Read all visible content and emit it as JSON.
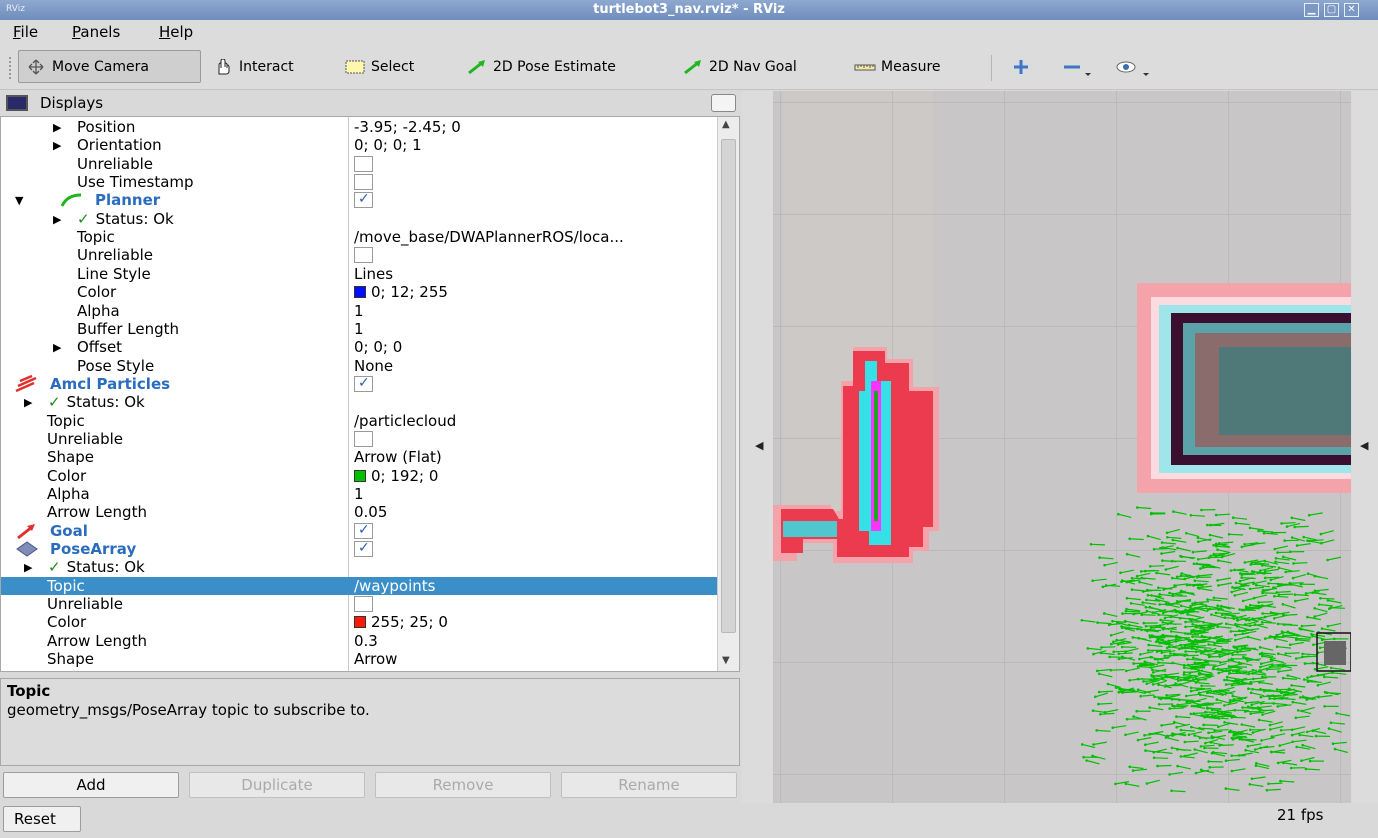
{
  "window": {
    "app_tag": "RViz",
    "title": "turtlebot3_nav.rviz* - RViz",
    "controls": [
      "minimize",
      "maximize",
      "close"
    ]
  },
  "menu": [
    {
      "label": "File",
      "accel": "F",
      "rest": "ile"
    },
    {
      "label": "Panels",
      "accel": "P",
      "rest": "anels"
    },
    {
      "label": "Help",
      "accel": "H",
      "rest": "elp"
    }
  ],
  "toolbar": {
    "move_camera": "Move Camera",
    "interact": "Interact",
    "select": "Select",
    "pose_estimate": "2D Pose Estimate",
    "nav_goal": "2D Nav Goal",
    "measure": "Measure",
    "add_tool_icon": "plus-icon",
    "remove_tool_icon": "minus-icon",
    "view_icon": "eye-icon"
  },
  "displays": {
    "title": "Displays",
    "rows": [
      {
        "key": "Position",
        "value": "-3.95; -2.45; 0",
        "indent": 76,
        "arrow": "right"
      },
      {
        "key": "Orientation",
        "value": "0; 0; 0; 1",
        "indent": 76,
        "arrow": "right"
      },
      {
        "key": "Unreliable",
        "value": "",
        "indent": 76,
        "check": "off"
      },
      {
        "key": "Use Timestamp",
        "value": "",
        "indent": 76,
        "check": "off"
      },
      {
        "key": "Planner",
        "value": "",
        "indent": 94,
        "arrow": "down",
        "check": "on",
        "display": true,
        "icon": "path-icon"
      },
      {
        "key": "Status: Ok",
        "value": "",
        "indent": 108,
        "arrow": "right",
        "status": true
      },
      {
        "key": "Topic",
        "value": "/move_base/DWAPlannerROS/loca...",
        "indent": 76
      },
      {
        "key": "Unreliable",
        "value": "",
        "indent": 76,
        "check": "off"
      },
      {
        "key": "Line Style",
        "value": "Lines",
        "indent": 76
      },
      {
        "key": "Color",
        "value": "0; 12; 255",
        "indent": 76,
        "swatch": "#000cff"
      },
      {
        "key": "Alpha",
        "value": "1",
        "indent": 76
      },
      {
        "key": "Buffer Length",
        "value": "1",
        "indent": 76
      },
      {
        "key": "Offset",
        "value": "0; 0; 0",
        "indent": 76,
        "arrow": "right"
      },
      {
        "key": "Pose Style",
        "value": "None",
        "indent": 76
      },
      {
        "key": "Amcl Particles",
        "value": "",
        "indent": 49,
        "check": "on",
        "display": true,
        "icon": "pose-array-red-icon"
      },
      {
        "key": "Status: Ok",
        "value": "",
        "indent": 79,
        "arrow": "right",
        "status": true
      },
      {
        "key": "Topic",
        "value": "/particlecloud",
        "indent": 46
      },
      {
        "key": "Unreliable",
        "value": "",
        "indent": 46,
        "check": "off"
      },
      {
        "key": "Shape",
        "value": "Arrow (Flat)",
        "indent": 46
      },
      {
        "key": "Color",
        "value": "0; 192; 0",
        "indent": 46,
        "swatch": "#00c000"
      },
      {
        "key": "Alpha",
        "value": "1",
        "indent": 46
      },
      {
        "key": "Arrow Length",
        "value": "0.05",
        "indent": 46
      },
      {
        "key": "Goal",
        "value": "",
        "indent": 49,
        "check": "on",
        "display": true,
        "icon": "goal-arrow-icon"
      },
      {
        "key": "PoseArray",
        "value": "",
        "indent": 49,
        "check": "on",
        "display": true,
        "icon": "pose-array-icon"
      },
      {
        "key": "Status: Ok",
        "value": "",
        "indent": 79,
        "arrow": "right",
        "status": true
      },
      {
        "key": "Topic",
        "value": "/waypoints",
        "indent": 46,
        "selected": true
      },
      {
        "key": "Unreliable",
        "value": "",
        "indent": 46,
        "check": "off"
      },
      {
        "key": "Color",
        "value": "255; 25; 0",
        "indent": 46,
        "swatch": "#ff1900"
      },
      {
        "key": "Arrow Length",
        "value": "0.3",
        "indent": 46
      },
      {
        "key": "Shape",
        "value": "Arrow",
        "indent": 46
      }
    ]
  },
  "description": {
    "title": "Topic",
    "text": "geometry_msgs/PoseArray topic to subscribe to."
  },
  "buttons": {
    "add": "Add",
    "duplicate": "Duplicate",
    "remove": "Remove",
    "rename": "Rename",
    "reset": "Reset"
  },
  "status": {
    "fps": "21 fps"
  },
  "colors": {
    "selection": "#3a8fc9",
    "display_name": "#2b6cbf",
    "particles": "#00c000",
    "costmap_inflation": "#ee4455",
    "costmap_lethal": "#ff33ff",
    "costmap_cyan": "#33eeee",
    "grid_background": "#c9c6c8"
  }
}
